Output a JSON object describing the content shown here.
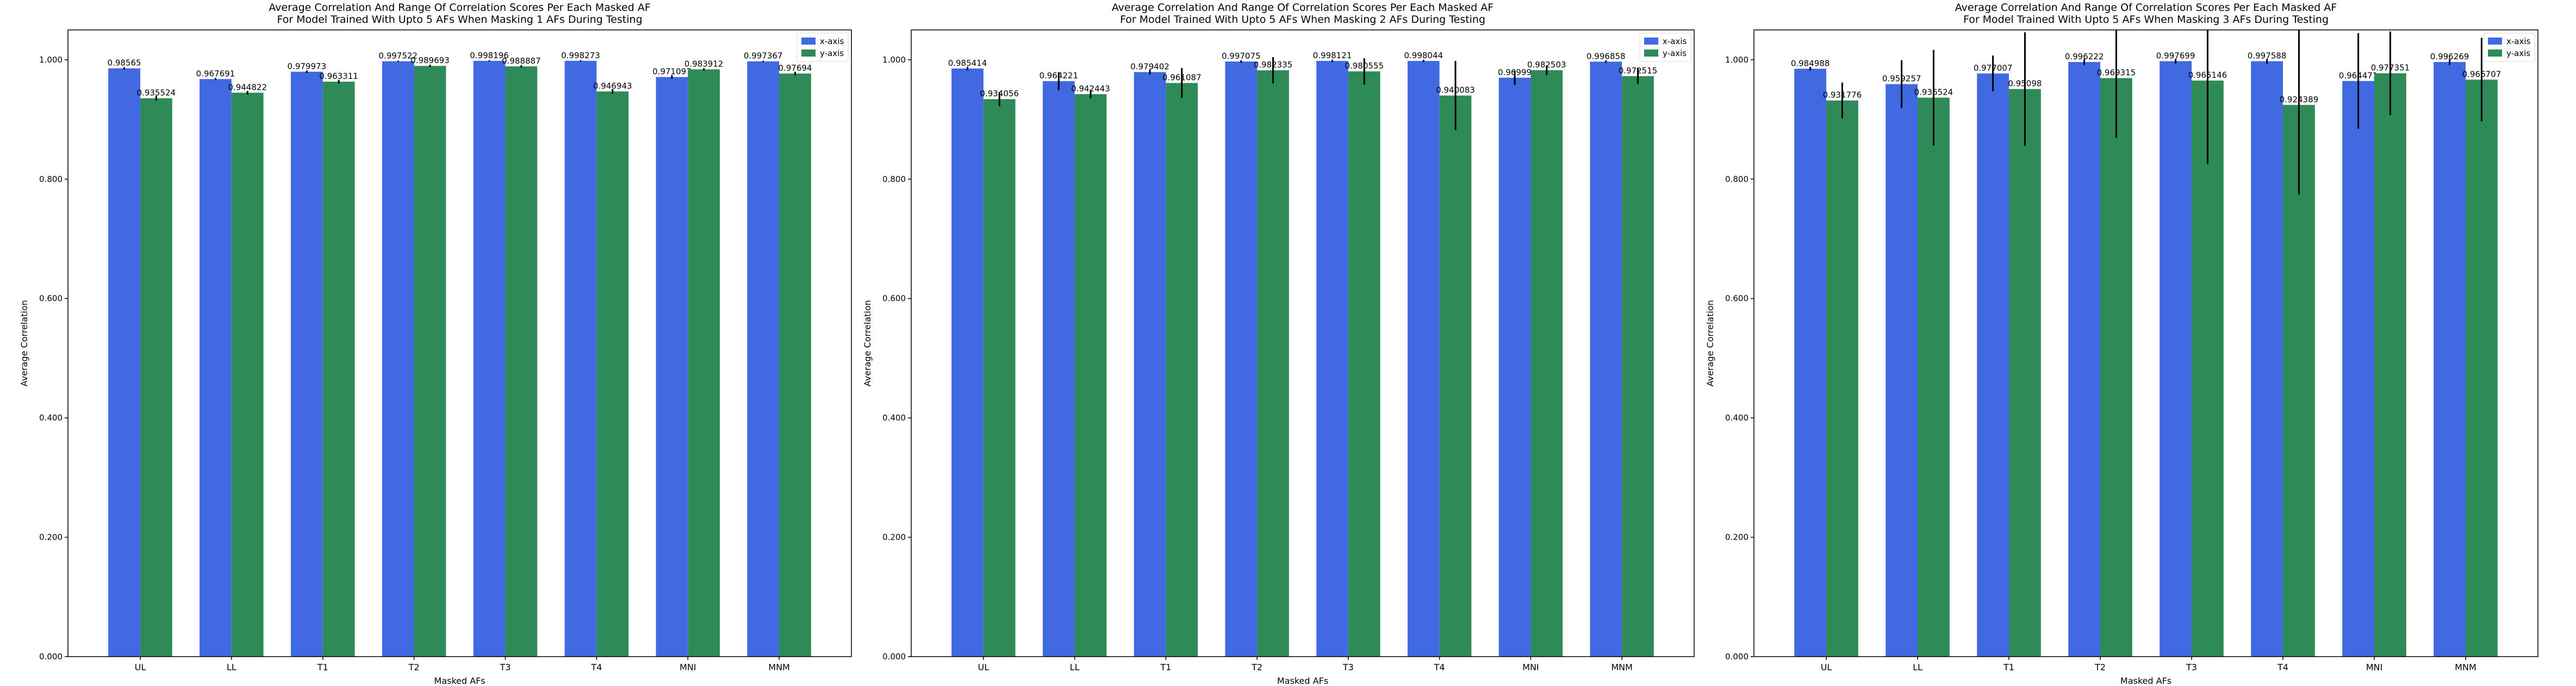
{
  "chart_data": [
    {
      "type": "bar",
      "title": "Average Correlation And Range Of Correlation Scores Per Each Masked AF",
      "subtitle": "For Model Trained With Upto 5 AFs When Masking 1 AFs During Testing",
      "xlabel": "Masked AFs",
      "ylabel": "Average Correlation",
      "ylim": [
        0,
        1.05
      ],
      "yticks": [
        "0.000",
        "0.200",
        "0.400",
        "0.600",
        "0.800",
        "1.000"
      ],
      "legend_position": "top-right",
      "grid": false,
      "categories": [
        "UL",
        "LL",
        "T1",
        "T2",
        "T3",
        "T4",
        "MNI",
        "MNM"
      ],
      "series": [
        {
          "name": "x-axis",
          "color": "#4169e1",
          "values": [
            0.98565,
            0.967691,
            0.979973,
            0.997522,
            0.998196,
            0.998273,
            0.971097,
            0.997367
          ],
          "labels": [
            "0.98565",
            "0.967691",
            "0.979973",
            "0.997522",
            "0.998196",
            "0.998273",
            "0.971097",
            "0.997367"
          ],
          "err": [
            0.002,
            0.002,
            0.002,
            0.001,
            0.001,
            0.001,
            0.003,
            0.001
          ]
        },
        {
          "name": "y-axis",
          "color": "#2e8b57",
          "values": [
            0.935524,
            0.944822,
            0.963311,
            0.989693,
            0.988887,
            0.946943,
            0.983912,
            0.97694
          ],
          "labels": [
            "0.935524",
            "0.944822",
            "0.963311",
            "0.989693",
            "0.988887",
            "0.946943",
            "0.983912",
            "0.97694"
          ],
          "err": [
            0.004,
            0.003,
            0.003,
            0.002,
            0.002,
            0.004,
            0.002,
            0.003
          ]
        }
      ]
    },
    {
      "type": "bar",
      "title": "Average Correlation And Range Of Correlation Scores Per Each Masked AF",
      "subtitle": "For Model Trained With Upto 5 AFs When Masking 2 AFs During Testing",
      "xlabel": "Masked AFs",
      "ylabel": "Average Correlation",
      "ylim": [
        0,
        1.05
      ],
      "yticks": [
        "0.000",
        "0.200",
        "0.400",
        "0.600",
        "0.800",
        "1.000"
      ],
      "legend_position": "top-right",
      "grid": false,
      "categories": [
        "UL",
        "LL",
        "T1",
        "T2",
        "T3",
        "T4",
        "MNI",
        "MNM"
      ],
      "series": [
        {
          "name": "x-axis",
          "color": "#4169e1",
          "values": [
            0.985414,
            0.964221,
            0.979402,
            0.997075,
            0.998121,
            0.998044,
            0.96999,
            0.996858
          ],
          "labels": [
            "0.985414",
            "0.964221",
            "0.979402",
            "0.997075",
            "0.998121",
            "0.998044",
            "0.96999",
            "0.996858"
          ],
          "err": [
            0.003,
            0.015,
            0.004,
            0.002,
            0.002,
            0.002,
            0.012,
            0.002
          ]
        },
        {
          "name": "y-axis",
          "color": "#2e8b57",
          "values": [
            0.934056,
            0.942443,
            0.961087,
            0.982335,
            0.980555,
            0.940083,
            0.982503,
            0.972515
          ],
          "labels": [
            "0.934056",
            "0.942443",
            "0.961087",
            "0.982335",
            "0.980555",
            "0.940083",
            "0.982503",
            "0.972515"
          ],
          "err": [
            0.012,
            0.007,
            0.025,
            0.022,
            0.022,
            0.058,
            0.008,
            0.013
          ]
        }
      ]
    },
    {
      "type": "bar",
      "title": "Average Correlation And Range Of Correlation Scores Per Each Masked AF",
      "subtitle": "For Model Trained With Upto 5 AFs When Masking 3 AFs During Testing",
      "xlabel": "Masked AFs",
      "ylabel": "Average Correlation",
      "ylim": [
        0,
        1.05
      ],
      "yticks": [
        "0.000",
        "0.200",
        "0.400",
        "0.600",
        "0.800",
        "1.000"
      ],
      "legend_position": "top-right",
      "grid": false,
      "categories": [
        "UL",
        "LL",
        "T1",
        "T2",
        "T3",
        "T4",
        "MNI",
        "MNM"
      ],
      "series": [
        {
          "name": "x-axis",
          "color": "#4169e1",
          "values": [
            0.984988,
            0.959257,
            0.977007,
            0.996222,
            0.997699,
            0.997588,
            0.964471,
            0.996269
          ],
          "labels": [
            "0.984988",
            "0.959257",
            "0.977007",
            "0.996222",
            "0.997699",
            "0.997588",
            "0.964471",
            "0.996269"
          ],
          "err": [
            0.003,
            0.04,
            0.03,
            0.005,
            0.004,
            0.004,
            0.08,
            0.005
          ]
        },
        {
          "name": "y-axis",
          "color": "#2e8b57",
          "values": [
            0.931776,
            0.936524,
            0.95098,
            0.969315,
            0.965146,
            0.924389,
            0.977351,
            0.966707
          ],
          "labels": [
            "0.931776",
            "0.936524",
            "0.95098",
            "0.969315",
            "0.965146",
            "0.924389",
            "0.977351",
            "0.966707"
          ],
          "err": [
            0.03,
            0.08,
            0.095,
            0.1,
            0.14,
            0.15,
            0.07,
            0.07
          ]
        }
      ]
    }
  ]
}
